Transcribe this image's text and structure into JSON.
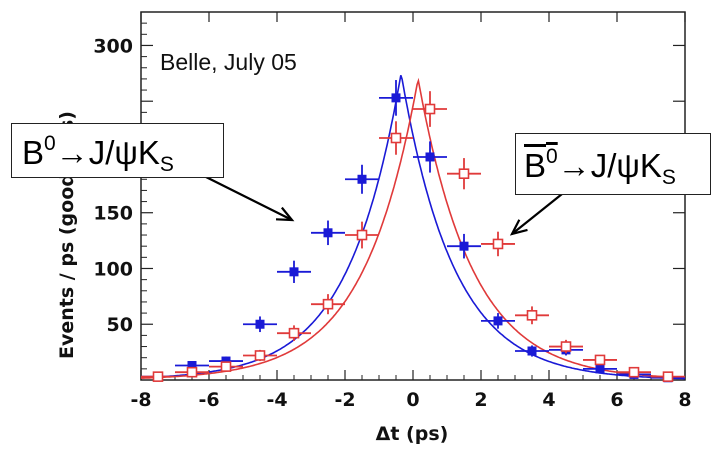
{
  "chart_data": {
    "type": "scatter",
    "title": "",
    "xlabel": "Δt (ps)",
    "ylabel": "Events / ps (good tags)",
    "xlim": [
      -8,
      8
    ],
    "ylim": [
      0,
      330
    ],
    "x_ticks": [
      -8,
      -6,
      -4,
      -2,
      0,
      2,
      4,
      6,
      8
    ],
    "y_ticks": [
      50,
      100,
      150,
      200,
      250,
      300
    ],
    "y_tick_labels": [
      "50",
      "100",
      "150",
      "",
      "",
      "300"
    ],
    "annotation": "Belle, July 05",
    "series": [
      {
        "name": "B⁰→J/ψK_S",
        "color": "#1a1ad6",
        "marker": "filled-square",
        "x": [
          -7.5,
          -6.5,
          -5.5,
          -4.5,
          -3.5,
          -2.5,
          -1.5,
          -0.5,
          0.5,
          1.5,
          2.5,
          3.5,
          4.5,
          5.5,
          6.5,
          7.5
        ],
        "y": [
          3,
          13,
          17,
          50,
          97,
          132,
          180,
          253,
          200,
          120,
          53,
          26,
          27,
          10,
          5,
          2
        ],
        "xerr": 0.5,
        "yerr": [
          2,
          4,
          4,
          7,
          10,
          11,
          13,
          16,
          14,
          11,
          7,
          5,
          5,
          3,
          2,
          1
        ]
      },
      {
        "name": "B̄⁰→J/ψK_S",
        "color": "#e03a3a",
        "marker": "open-square",
        "x": [
          -7.5,
          -6.5,
          -5.5,
          -4.5,
          -3.5,
          -2.5,
          -1.5,
          -0.5,
          0.5,
          1.5,
          2.5,
          3.5,
          4.5,
          5.5,
          6.5,
          7.5
        ],
        "y": [
          3,
          7,
          12,
          22,
          42,
          68,
          130,
          217,
          243,
          185,
          122,
          58,
          30,
          18,
          7,
          3
        ],
        "xerr": 0.5,
        "yerr": [
          2,
          3,
          4,
          5,
          7,
          9,
          12,
          15,
          16,
          14,
          11,
          8,
          6,
          4,
          3,
          2
        ]
      }
    ],
    "fits": [
      {
        "color": "#1a1ad6",
        "center": -0.35,
        "peak": 275,
        "tau": 1.55
      },
      {
        "color": "#e03a3a",
        "center": 0.15,
        "peak": 270,
        "tau": 1.6
      }
    ]
  },
  "labels": {
    "b0": {
      "base": "B",
      "sup": "0",
      "arrow": "→",
      "mid": "J/ψK",
      "sub": "S"
    },
    "b0bar": {
      "base": "B",
      "sup": "0",
      "arrow": "→",
      "mid": "J/ψK",
      "sub": "S"
    }
  }
}
